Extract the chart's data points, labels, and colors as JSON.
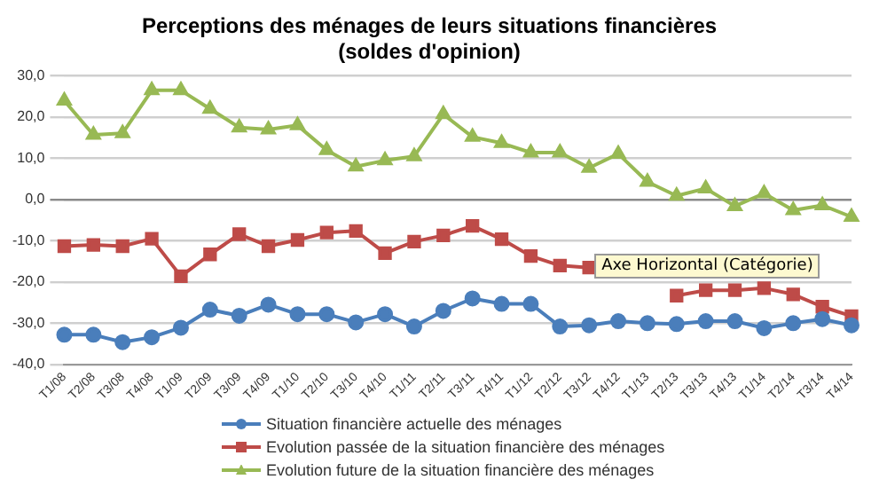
{
  "chart_data": {
    "type": "line",
    "title": "Perceptions des ménages de leurs situations financières\n(soldes d'opinion)",
    "categories": [
      "T1/08",
      "T2/08",
      "T3/08",
      "T4/08",
      "T1/09",
      "T2/09",
      "T3/09",
      "T4/09",
      "T1/10",
      "T2/10",
      "T3/10",
      "T4/10",
      "T1/11",
      "T2/11",
      "T3/11",
      "T4/11",
      "T1/12",
      "T2/12",
      "T3/12",
      "T4/12",
      "T1/13",
      "T2/13",
      "T3/13",
      "T4/13",
      "T1/14",
      "T2/14",
      "T3/14",
      "T4/14"
    ],
    "series": [
      {
        "name": "Situation financière actuelle des ménages",
        "color": "#4a7ebb",
        "marker": "circle",
        "values": [
          -32.8,
          -32.8,
          -34.6,
          -33.4,
          -31.1,
          -26.7,
          -28.2,
          -25.5,
          -27.8,
          -27.8,
          -29.8,
          -27.8,
          -30.8,
          -27,
          -24,
          -25.3,
          -25.3,
          -30.8,
          -30.5,
          -29.5,
          -30,
          -30.2,
          -29.5,
          -29.5,
          -31.2,
          -30,
          -29,
          -30.5
        ]
      },
      {
        "name": "Evolution  passée de la situation financière des ménages",
        "color": "#be4b48",
        "marker": "square",
        "values": [
          -11.3,
          -11,
          -11.3,
          -9.5,
          -18.6,
          -13.3,
          -8.4,
          -11.3,
          -9.8,
          -8,
          -7.6,
          -13,
          -10.2,
          -8.7,
          -6.4,
          -9.6,
          -13.7,
          -16,
          -16.5,
          null,
          null,
          -23.3,
          -22,
          -22,
          -21.5,
          -23,
          -26,
          -28.3
        ]
      },
      {
        "name": "Evolution  future de la situation financière des ménages",
        "color": "#98b954",
        "marker": "triangle",
        "values": [
          24,
          15.7,
          16.1,
          26.5,
          26.5,
          22,
          17.5,
          17,
          18,
          12,
          8,
          9.5,
          10.5,
          20.7,
          15.2,
          13.7,
          11.4,
          11.4,
          7.7,
          11.1,
          4.3,
          0.9,
          2.7,
          -1.6,
          1.5,
          -2.6,
          -1.4,
          -4.2
        ]
      }
    ],
    "ylim": [
      -40,
      30
    ],
    "yticks": [
      {
        "value": -40,
        "label": "-40,0"
      },
      {
        "value": -30,
        "label": "-30,0"
      },
      {
        "value": -20,
        "label": "-20,0"
      },
      {
        "value": -10,
        "label": "-10,0"
      },
      {
        "value": 0,
        "label": "0,0"
      },
      {
        "value": 10,
        "label": "10,0"
      },
      {
        "value": 20,
        "label": "20,0"
      },
      {
        "value": 30,
        "label": "30,0"
      }
    ],
    "grid": "y",
    "legend": "bottom",
    "line_style": "solid",
    "annotations": [
      "Axe Horizontal (Catégorie)"
    ]
  }
}
